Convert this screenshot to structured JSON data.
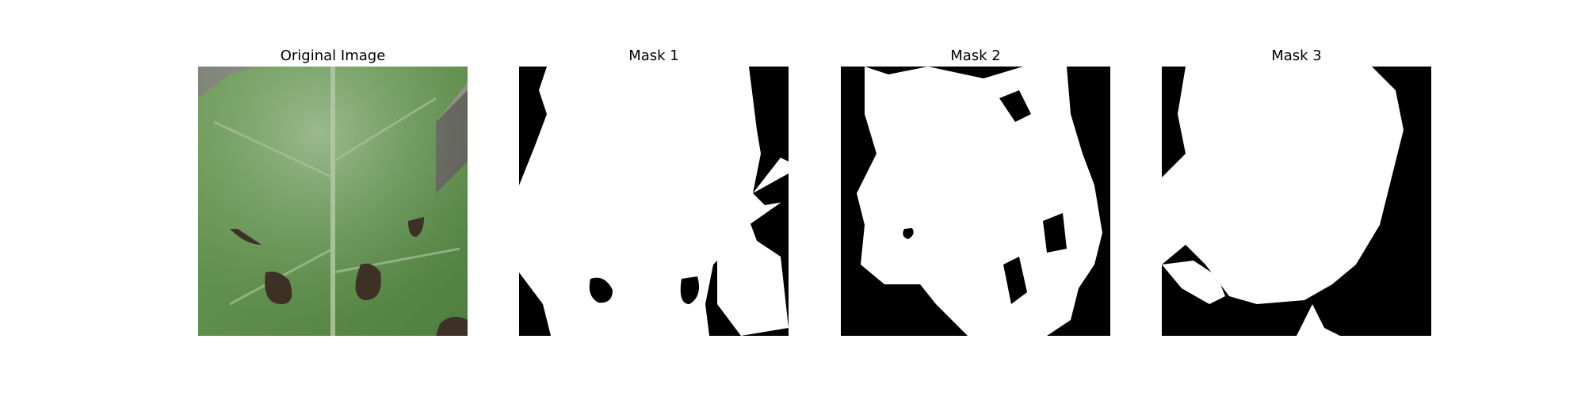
{
  "panels": [
    {
      "title": "Original Image"
    },
    {
      "title": "Mask 1"
    },
    {
      "title": "Mask 2"
    },
    {
      "title": "Mask 3"
    }
  ],
  "colors": {
    "background": "#ffffff",
    "mask_foreground": "#ffffff",
    "mask_background": "#000000",
    "leaf_green": "#5f8e4c",
    "leaf_dark": "#3f6d32",
    "leaf_highlight": "#b8cfb0",
    "background_gray": "#8f8a88",
    "hole_dark": "#3d3125"
  }
}
